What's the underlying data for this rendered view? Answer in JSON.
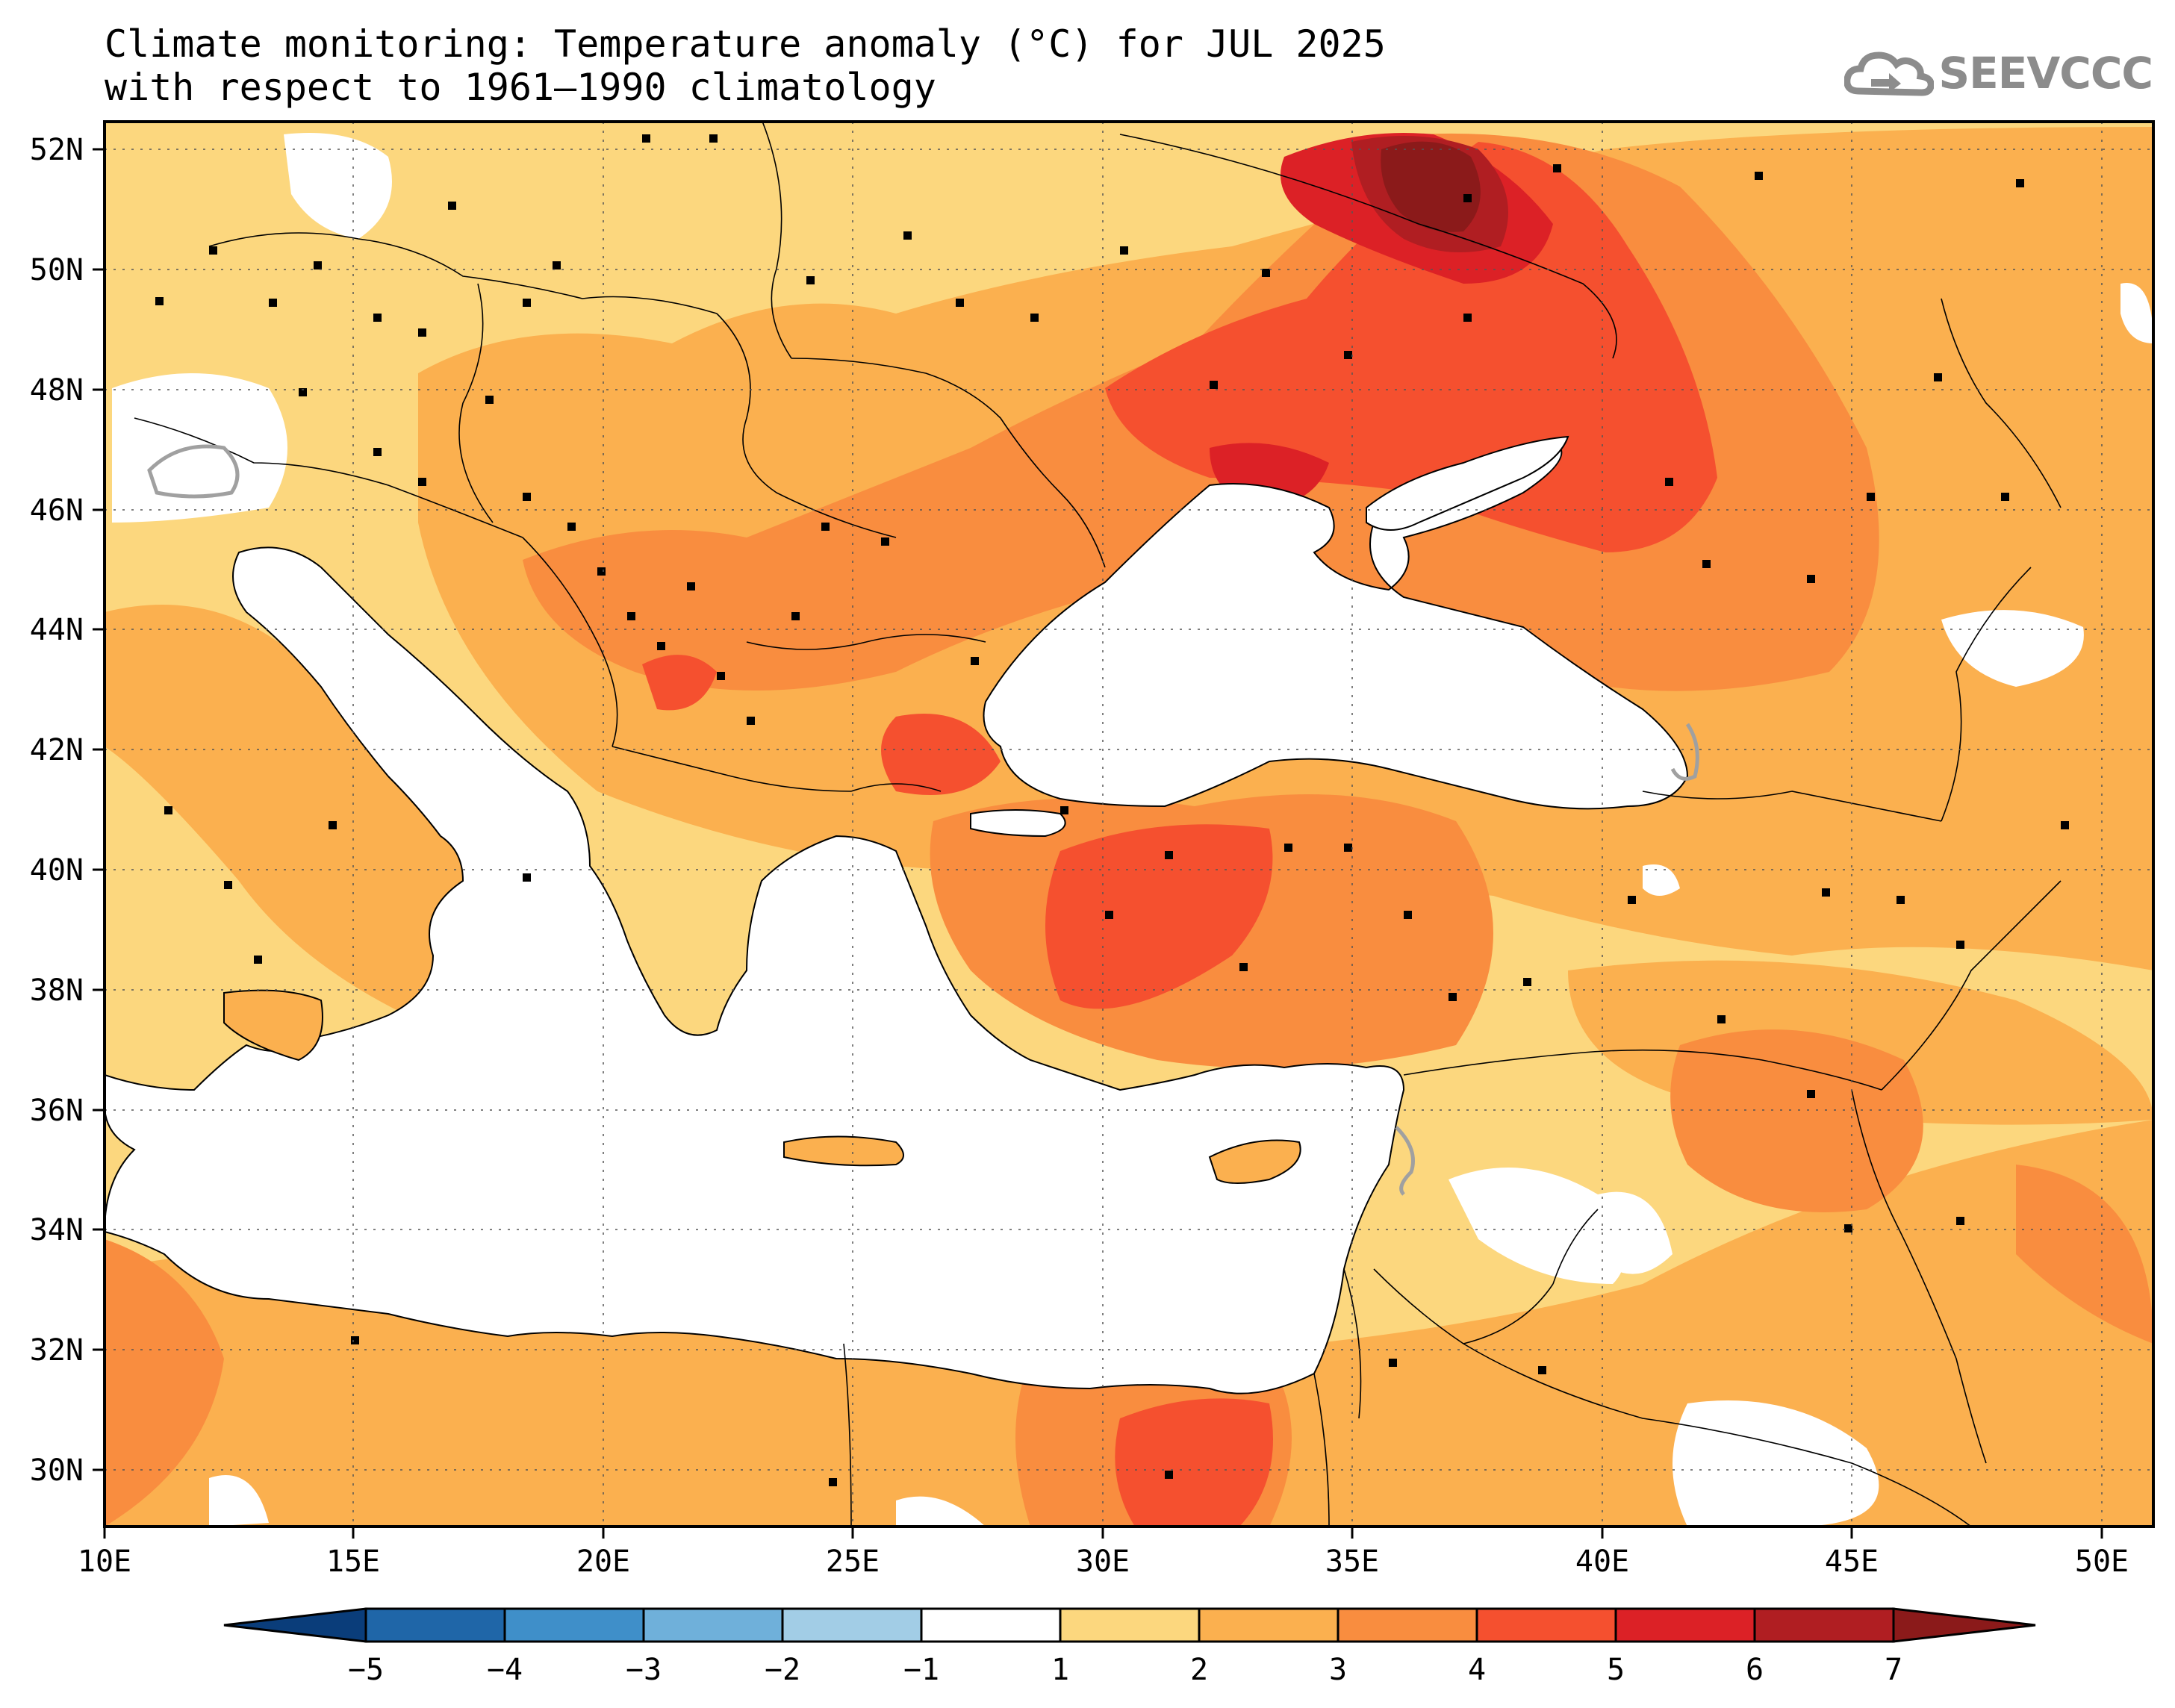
{
  "title": {
    "line1": "Climate monitoring: Temperature anomaly (°C) for JUL 2025",
    "line2": "with respect to 1961–1990 climatology"
  },
  "logo": {
    "text": "SEEVCCC",
    "icon": "cloud-logo-icon"
  },
  "map": {
    "lon_range": [
      10,
      51
    ],
    "lat_range": [
      29,
      52.5
    ],
    "lat_labels": [
      "52N",
      "50N",
      "48N",
      "46N",
      "44N",
      "42N",
      "40N",
      "38N",
      "36N",
      "34N",
      "32N",
      "30N"
    ],
    "lon_labels": [
      "10E",
      "15E",
      "20E",
      "25E",
      "30E",
      "35E",
      "40E",
      "45E",
      "50E"
    ],
    "grid": true,
    "anomaly_zones": [
      {
        "level": "1-2",
        "color": "#fcd77e"
      },
      {
        "level": "2-3",
        "color": "#fbb04f"
      },
      {
        "level": "3-4",
        "color": "#f98d3f"
      },
      {
        "level": "4-5",
        "color": "#f5502f"
      },
      {
        "level": "5-6",
        "color": "#dc2126"
      },
      {
        "level": "6-7",
        "color": "#b01e22"
      },
      {
        "level": ">7",
        "color": "#8b1a1a"
      }
    ],
    "hotspot_description": "Maximum anomaly (>7) over southwestern Russia near 51N 37E"
  },
  "colorbar": {
    "labels": [
      "−5",
      "−4",
      "−3",
      "−2",
      "−1",
      "1",
      "2",
      "3",
      "4",
      "5",
      "6",
      "7"
    ],
    "colors": [
      "#0a3d7a",
      "#1f66a8",
      "#3f8fc9",
      "#6fb0da",
      "#a2cde6",
      "#ffffff",
      "#fcd77e",
      "#fbb04f",
      "#f98d3f",
      "#f5502f",
      "#dc2126",
      "#b01e22",
      "#8b1a1a"
    ]
  }
}
